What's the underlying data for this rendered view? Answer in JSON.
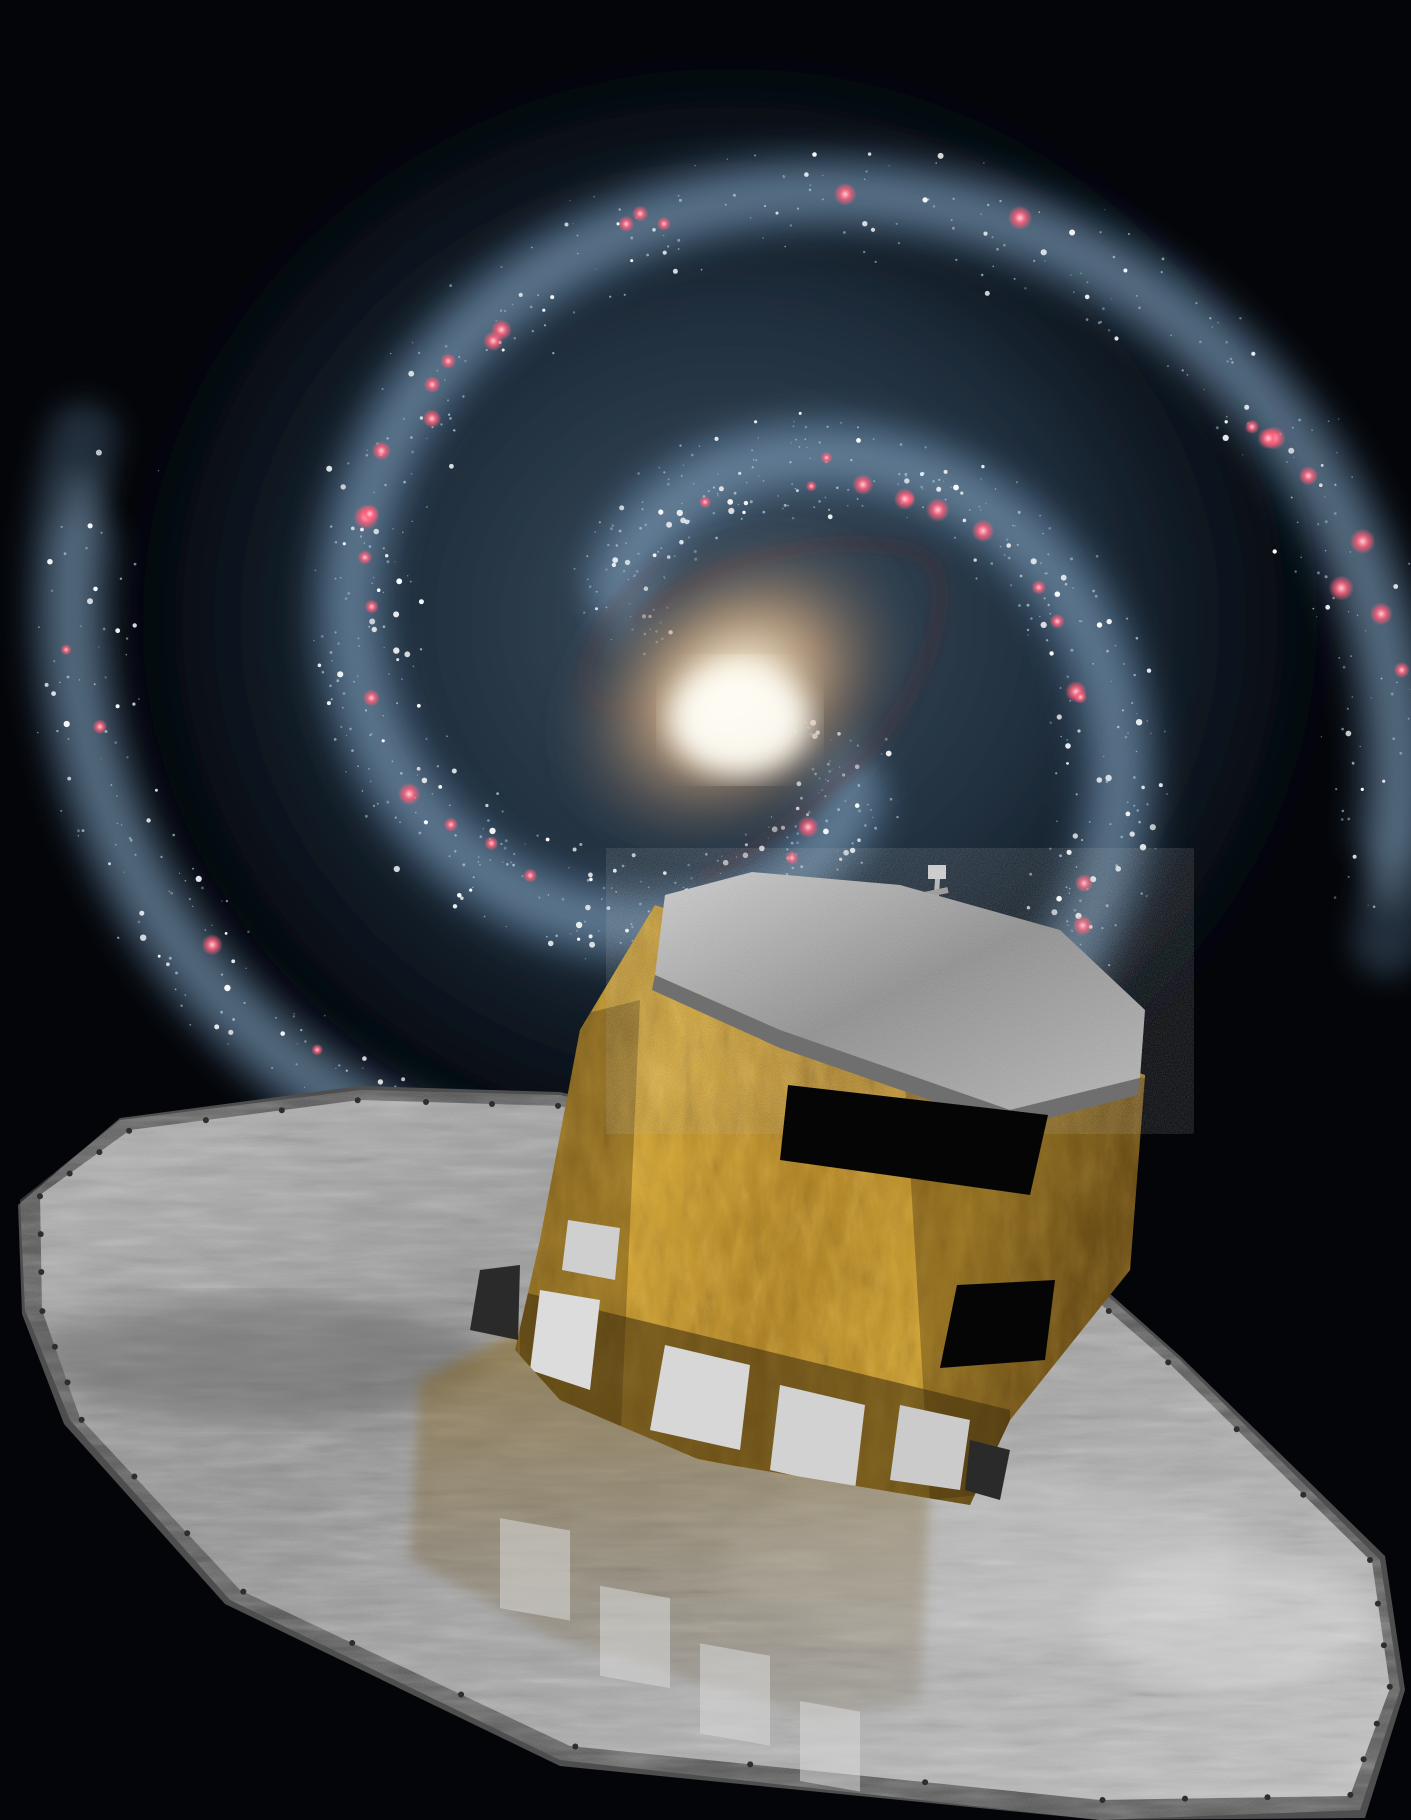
{
  "scene": {
    "subject": "spacecraft-over-spiral-galaxy",
    "colors": {
      "space": "#030509",
      "galaxy_arm": "#5f86a6",
      "galaxy_arm_light": "#b9d3e6",
      "galaxy_core": "#fff6e2",
      "galaxy_bulge": "#c9a27a",
      "hii_region": "#ff5d78",
      "dust_lane": "#6b2e36",
      "sunshield": "#9c9c9c",
      "sunshield_light": "#c8c8c8",
      "sunshield_rim": "#5c5c5c",
      "mli_gold": "#c8961c",
      "mli_dark": "#5b3e0c",
      "top_panel": "#a7a7a7",
      "radiator": "#d8d8d8",
      "window": "#050505"
    },
    "stars": {
      "count_bright": 260,
      "count_faint": 900
    }
  }
}
